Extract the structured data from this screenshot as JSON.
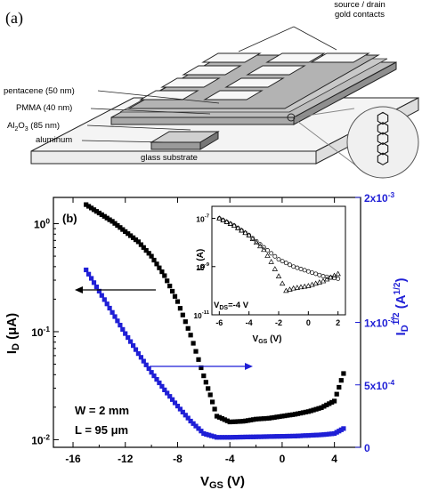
{
  "panel_a": {
    "label": "(a)",
    "callouts": {
      "contacts_line1": "source / drain",
      "contacts_line2": "gold contacts",
      "pentacene": "pentacene (50 nm)",
      "pmma": "PMMA (40 nm)",
      "al2o3_base": "Al",
      "al2o3_sub1": "2",
      "al2o3_mid": "O",
      "al2o3_sub2": "3",
      "al2o3_rest": " (85 nm)",
      "aluminum": "aluminum",
      "glass": "glass substrate"
    }
  },
  "chart_data": [
    {
      "type": "scatter",
      "panel_label": "(b)",
      "xlabel": "V_GS (V)",
      "ylabel_left": "I_D (μA)",
      "ylabel_right": "I_D^1/2 (A^1/2)",
      "x_ticks": [
        "-16",
        "-12",
        "-8",
        "-4",
        "0",
        "4"
      ],
      "y_left_ticks": [
        "10^0",
        "10^-1",
        "10^-2"
      ],
      "y_right_ticks": [
        "0",
        "5x10^-4",
        "1x10^-3",
        "2x10^-3"
      ],
      "xlim": [
        -17.5,
        6
      ],
      "ylim_left": [
        0.0085,
        1.75
      ],
      "ylim_right": [
        0,
        0.002
      ],
      "y_left_scale": "log",
      "series": [
        {
          "axis": "left",
          "color": "#000000",
          "marker": "square",
          "x": [
            -15,
            -13,
            -11,
            -10,
            -9,
            -8,
            -7,
            -6,
            -5.5,
            -5,
            -4,
            -3,
            -2,
            -1,
            0,
            1,
            2,
            3,
            4,
            4.7
          ],
          "y": [
            1.5,
            1.05,
            0.68,
            0.5,
            0.33,
            0.19,
            0.093,
            0.039,
            0.026,
            0.0165,
            0.0146,
            0.0148,
            0.0155,
            0.0158,
            0.0165,
            0.0172,
            0.0182,
            0.0198,
            0.0228,
            0.041
          ]
        },
        {
          "axis": "right",
          "color": "#1f1fd6",
          "marker": "square",
          "x": [
            -15,
            -14,
            -13,
            -12,
            -11,
            -10,
            -9,
            -8,
            -7,
            -6,
            -5,
            -4,
            -3,
            -2,
            -1,
            0,
            1,
            2,
            3,
            4,
            4.7
          ],
          "y": [
            0.00142,
            0.00125,
            0.00108,
            0.00091,
            0.00075,
            0.0006,
            0.00046,
            0.00033,
            0.00021,
            0.00011,
            8e-05,
            8e-05,
            8.2e-05,
            8.4e-05,
            8.6e-05,
            8.8e-05,
            9e-05,
            9.5e-05,
            0.0001,
            0.00011,
            0.00015
          ]
        }
      ],
      "annotations": {
        "w_text": "W = 2 mm",
        "l_text": "L = 95 μm"
      }
    },
    {
      "type": "scatter",
      "role": "inset",
      "xlabel": "V_GS (V)",
      "ylabel": "I_D (A)",
      "x_ticks": [
        "-6",
        "-4",
        "-2",
        "0",
        "2"
      ],
      "y_ticks": [
        "10^-7",
        "10^-9",
        "10^-11"
      ],
      "xlim": [
        -6.5,
        2.5
      ],
      "ylim_log10": [
        -11,
        -6.5
      ],
      "annotation": "V_DS=-4 V",
      "series": [
        {
          "marker": "triangle",
          "x": [
            -6,
            -5,
            -4,
            -3,
            -2.5,
            -2,
            -1.5,
            -1,
            0,
            1,
            2
          ],
          "y_log10": [
            -7.0,
            -7.3,
            -7.7,
            -8.3,
            -8.8,
            -9.4,
            -10.0,
            -9.9,
            -9.8,
            -9.6,
            -9.3
          ]
        },
        {
          "marker": "circle",
          "x": [
            -6,
            -5,
            -4,
            -3,
            -2,
            -1,
            0,
            1,
            2
          ],
          "y_log10": [
            -7.0,
            -7.3,
            -7.7,
            -8.2,
            -8.7,
            -9.0,
            -9.2,
            -9.4,
            -9.5
          ]
        }
      ]
    }
  ]
}
